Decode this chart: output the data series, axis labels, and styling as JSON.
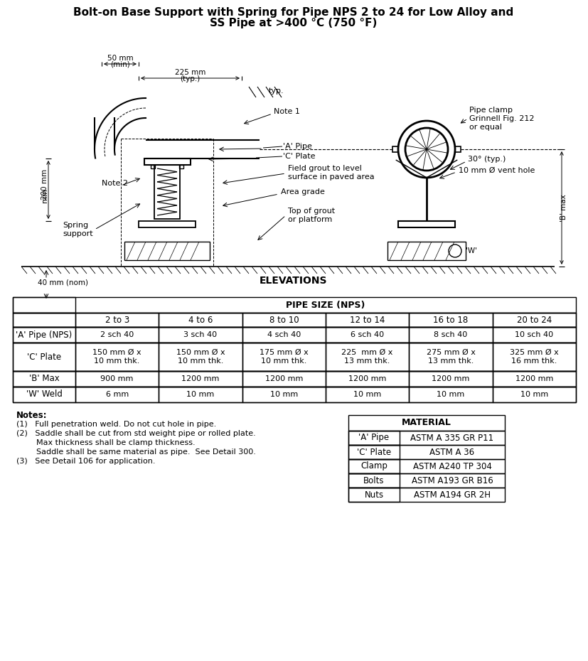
{
  "title_line1": "Bolt-on Base Support with Spring for Pipe NPS 2 to 24 for Low Alloy and",
  "title_line2": "SS Pipe at >400 °C (750 °F)",
  "elevations_label": "ELEVATIONS",
  "pipe_size_header": "PIPE SIZE (NPS)",
  "main_table_col_headers": [
    "2 to 3",
    "4 to 6",
    "8 to 10",
    "12 to 14",
    "16 to 18",
    "20 to 24"
  ],
  "main_table_row_headers": [
    "'A' Pipe (NPS)",
    "'C' Plate",
    "'B' Max",
    "'W' Weld"
  ],
  "main_table_data": [
    [
      "2 sch 40",
      "3 sch 40",
      "4 sch 40",
      "6 sch 40",
      "8 sch 40",
      "10 sch 40"
    ],
    [
      "150 mm Ø x\n10 mm thk.",
      "150 mm Ø x\n10 mm thk.",
      "175 mm Ø x\n10 mm thk.",
      "225  mm Ø x\n13 mm thk.",
      "275 mm Ø x\n13 mm thk.",
      "325 mm Ø x\n16 mm thk."
    ],
    [
      "900 mm",
      "1200 mm",
      "1200 mm",
      "1200 mm",
      "1200 mm",
      "1200 mm"
    ],
    [
      "6 mm",
      "10 mm",
      "10 mm",
      "10 mm",
      "10 mm",
      "10 mm"
    ]
  ],
  "material_header": "MATERIAL",
  "material_rows": [
    [
      "'A' Pipe",
      "ASTM A 335 GR P11"
    ],
    [
      "'C' Plate",
      "ASTM A 36"
    ],
    [
      "Clamp",
      "ASTM A240 TP 304"
    ],
    [
      "Bolts",
      "ASTM A193 GR B16"
    ],
    [
      "Nuts",
      "ASTM A194 GR 2H"
    ]
  ],
  "notes_title": "Notes:",
  "notes": [
    "(1)   Full penetration weld. Do not cut hole in pipe.",
    "(2)   Saddle shall be cut from std weight pipe or rolled plate.\n        Max thickness shall be clamp thickness.\n        Saddle shall be same material as pipe.  See Detail 300.",
    "(3)   See Detail 106 for application."
  ],
  "bg_color": "#ffffff",
  "line_color": "#000000",
  "font_size_title": 11,
  "font_size_table": 8.5,
  "font_size_notes": 8.5
}
